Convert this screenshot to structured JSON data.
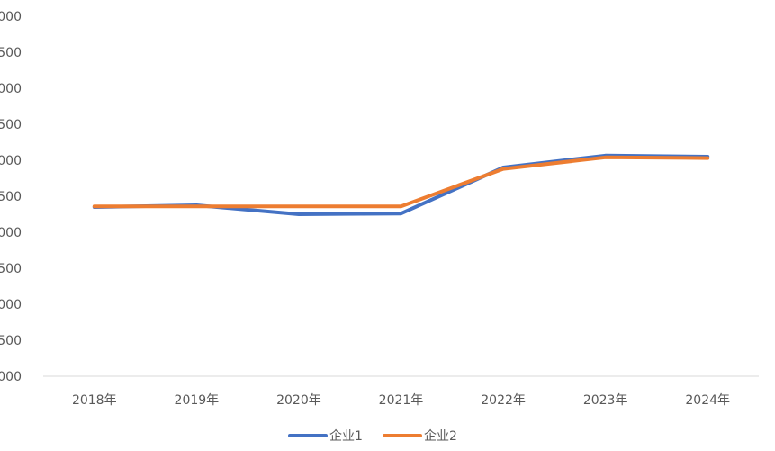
{
  "chart_data": {
    "type": "line",
    "title": "",
    "xlabel": "",
    "ylabel": "",
    "categories": [
      "2018年",
      "2019年",
      "2020年",
      "2021年",
      "2022年",
      "2023年",
      "2024年"
    ],
    "y_tick_labels": [
      "000",
      "500",
      "000",
      "500",
      "000",
      "500",
      "000",
      "500",
      "000",
      "500",
      "000"
    ],
    "ylim": [
      0,
      5000
    ],
    "ytick_step": 500,
    "grid": false,
    "legend_position": "bottom",
    "series": [
      {
        "name": "企业1",
        "color": "#4472C4",
        "values": [
          2350,
          2375,
          2250,
          2260,
          2900,
          3065,
          3050
        ]
      },
      {
        "name": "企业2",
        "color": "#ED7D31",
        "values": [
          2360,
          2360,
          2360,
          2360,
          2880,
          3040,
          3030
        ]
      }
    ]
  }
}
